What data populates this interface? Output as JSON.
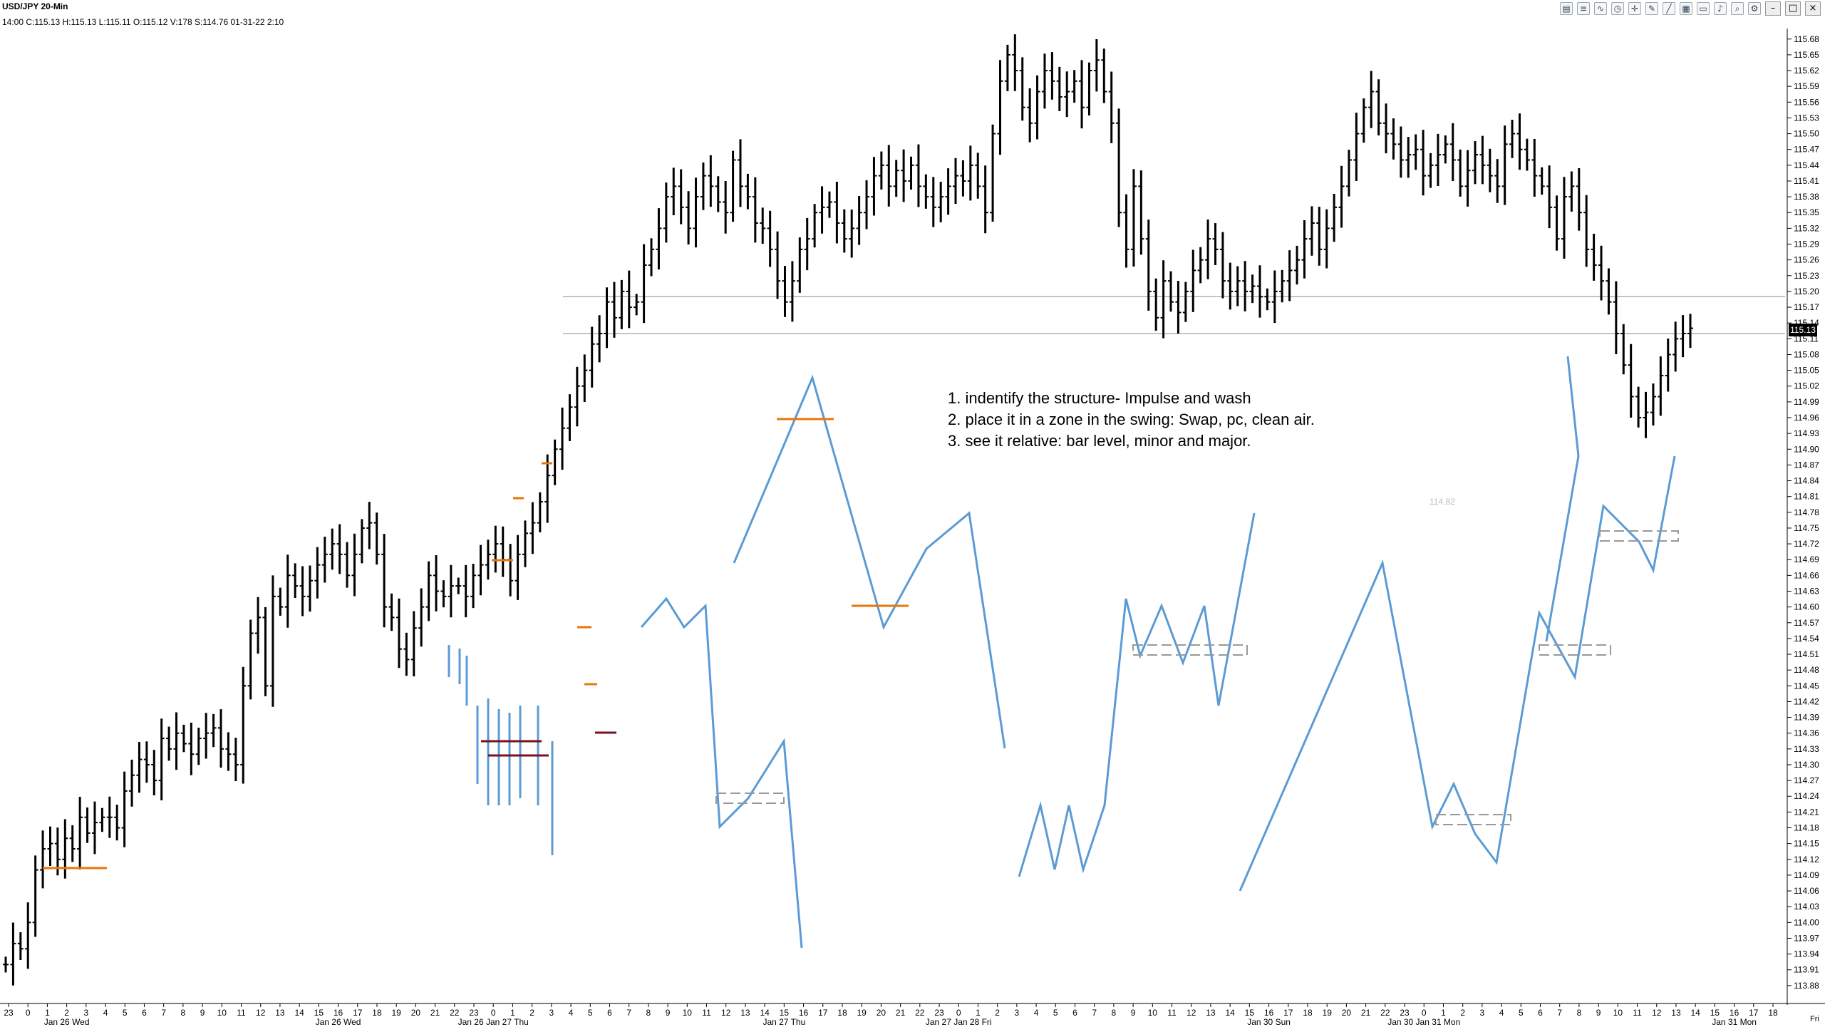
{
  "header": {
    "title": "USD/JPY 20-Min",
    "info": "14:00  C:115.13  H:115.13  L:115.11  O:115.12  V:178  S:114.76  01-31-22  2:10"
  },
  "toolbar": {
    "icons": [
      "chart-type-icon",
      "bar-style-icon",
      "indicators-icon",
      "clock-icon",
      "crosshair-icon",
      "drawing-pencil-icon",
      "line-tool-icon",
      "grid-icon",
      "template-icon",
      "alert-icon",
      "zoom-icon",
      "properties-icon"
    ],
    "window_buttons": [
      "minimize",
      "maximize",
      "close"
    ]
  },
  "annotations": {
    "lines": [
      "1. indentify the structure- Impulse and wash",
      "2. place it in a zone in the swing: Swap, pc, clean air.",
      "3. see it relative: bar level, minor and major."
    ],
    "ghost_price_label": "114.82",
    "small_bottom_right": "Fri"
  },
  "chart_data": {
    "type": "bar",
    "symbol": "USD/JPY",
    "timeframe": "20-Min",
    "ylim": [
      113.85,
      115.7
    ],
    "y_ticks": [
      "115.68",
      "115.65",
      "115.62",
      "115.59",
      "115.56",
      "115.53",
      "115.50",
      "115.47",
      "115.44",
      "115.41",
      "115.38",
      "115.35",
      "115.32",
      "115.29",
      "115.26",
      "115.23",
      "115.20",
      "115.17",
      "115.14",
      "115.11",
      "115.08",
      "115.05",
      "115.02",
      "114.99",
      "114.96",
      "114.93",
      "114.90",
      "114.87",
      "114.84",
      "114.81",
      "114.78",
      "114.75",
      "114.72",
      "114.69",
      "114.66",
      "114.63",
      "114.60",
      "114.57",
      "114.54",
      "114.51",
      "114.48",
      "114.45",
      "114.42",
      "114.39",
      "114.36",
      "114.33",
      "114.30",
      "114.27",
      "114.24",
      "114.21",
      "114.18",
      "114.15",
      "114.12",
      "114.09",
      "114.06",
      "114.03",
      "114.00",
      "113.97",
      "113.94",
      "113.91",
      "113.88"
    ],
    "last_price": "115.13",
    "hour_labels": [
      "23",
      "0",
      "1",
      "2",
      "3",
      "4",
      "5",
      "6",
      "7",
      "8",
      "9",
      "10",
      "11",
      "12",
      "13",
      "14",
      "15",
      "16",
      "17",
      "18",
      "19",
      "20",
      "21",
      "22",
      "23",
      "0",
      "1",
      "2",
      "3",
      "4",
      "5",
      "6",
      "7",
      "8",
      "9",
      "10",
      "11",
      "12",
      "13",
      "14",
      "15",
      "16",
      "17",
      "18",
      "19",
      "20",
      "21",
      "22",
      "23",
      "0",
      "1",
      "2",
      "3",
      "4",
      "5",
      "6",
      "7",
      "8",
      "9",
      "10",
      "11",
      "12",
      "13",
      "14",
      "15",
      "16",
      "17",
      "18",
      "19",
      "20",
      "21",
      "22",
      "23",
      "0",
      "1",
      "2",
      "3",
      "4",
      "5",
      "6",
      "7",
      "8",
      "9",
      "10",
      "11",
      "12",
      "13",
      "14",
      "15",
      "16",
      "17",
      "18"
    ],
    "date_labels": [
      {
        "text": "Jan 26 Wed",
        "at": 3
      },
      {
        "text": "Jan 26 Wed",
        "at": 17
      },
      {
        "text": "Jan 26 Jan 27 Thu",
        "at": 25
      },
      {
        "text": "Jan 27 Thu",
        "at": 40
      },
      {
        "text": "Jan 27 Jan 28 Fri",
        "at": 49
      },
      {
        "text": "Jan 30 Sun",
        "at": 65
      },
      {
        "text": "Jan 30 Jan 31 Mon",
        "at": 73
      },
      {
        "text": "Jan 31 Mon",
        "at": 89
      }
    ],
    "ohlc_closes": [
      113.92,
      113.96,
      113.95,
      114.0,
      114.1,
      114.14,
      114.15,
      114.12,
      114.16,
      114.14,
      114.2,
      114.17,
      114.19,
      114.2,
      114.2,
      114.18,
      114.25,
      114.28,
      114.31,
      114.3,
      114.27,
      114.35,
      114.33,
      114.36,
      114.34,
      114.32,
      114.35,
      114.36,
      114.37,
      114.33,
      114.32,
      114.3,
      114.45,
      114.55,
      114.58,
      114.45,
      114.62,
      114.6,
      114.66,
      114.64,
      114.62,
      114.65,
      114.68,
      114.7,
      114.72,
      114.7,
      114.66,
      114.7,
      114.75,
      114.76,
      114.7,
      114.6,
      114.58,
      114.52,
      114.5,
      114.56,
      114.6,
      114.66,
      114.63,
      114.62,
      114.64,
      114.64,
      114.62,
      114.66,
      114.68,
      114.7,
      114.72,
      114.69,
      114.65,
      114.7,
      114.74,
      114.76,
      114.8,
      114.85,
      114.9,
      114.94,
      114.98,
      115.02,
      115.05,
      115.1,
      115.12,
      115.18,
      115.15,
      115.2,
      115.17,
      115.18,
      115.25,
      115.28,
      115.32,
      115.38,
      115.4,
      115.36,
      115.32,
      115.38,
      115.42,
      115.4,
      115.37,
      115.35,
      115.45,
      115.4,
      115.38,
      115.33,
      115.32,
      115.28,
      115.22,
      115.18,
      115.22,
      115.28,
      115.3,
      115.35,
      115.36,
      115.37,
      115.33,
      115.3,
      115.32,
      115.35,
      115.38,
      115.42,
      115.44,
      115.4,
      115.43,
      115.41,
      115.44,
      115.4,
      115.38,
      115.36,
      115.38,
      115.4,
      115.42,
      115.41,
      115.44,
      115.4,
      115.35,
      115.5,
      115.6,
      115.65,
      115.62,
      115.55,
      115.52,
      115.58,
      115.62,
      115.6,
      115.57,
      115.58,
      115.6,
      115.55,
      115.62,
      115.64,
      115.58,
      115.52,
      115.35,
      115.28,
      115.4,
      115.3,
      115.2,
      115.15,
      115.22,
      115.18,
      115.16,
      115.2,
      115.24,
      115.26,
      115.3,
      115.28,
      115.22,
      115.2,
      115.22,
      115.2,
      115.21,
      115.19,
      115.18,
      115.2,
      115.22,
      115.24,
      115.26,
      115.3,
      115.33,
      115.28,
      115.32,
      115.36,
      115.4,
      115.45,
      115.5,
      115.55,
      115.58,
      115.52,
      115.5,
      115.48,
      115.45,
      115.46,
      115.47,
      115.42,
      115.44,
      115.46,
      115.48,
      115.45,
      115.4,
      115.43,
      115.46,
      115.44,
      115.42,
      115.4,
      115.48,
      115.5,
      115.47,
      115.45,
      115.42,
      115.4,
      115.36,
      115.3,
      115.38,
      115.4,
      115.35,
      115.28,
      115.25,
      115.22,
      115.18,
      115.12,
      115.06,
      115.0,
      114.96,
      114.97,
      115.0,
      115.04,
      115.08,
      115.11,
      115.12,
      115.13
    ],
    "horizontal_levels": [
      115.19,
      115.12
    ],
    "series": [
      {
        "name": "",
        "type": "annotation-line",
        "color": "#5b9bd5"
      }
    ]
  }
}
